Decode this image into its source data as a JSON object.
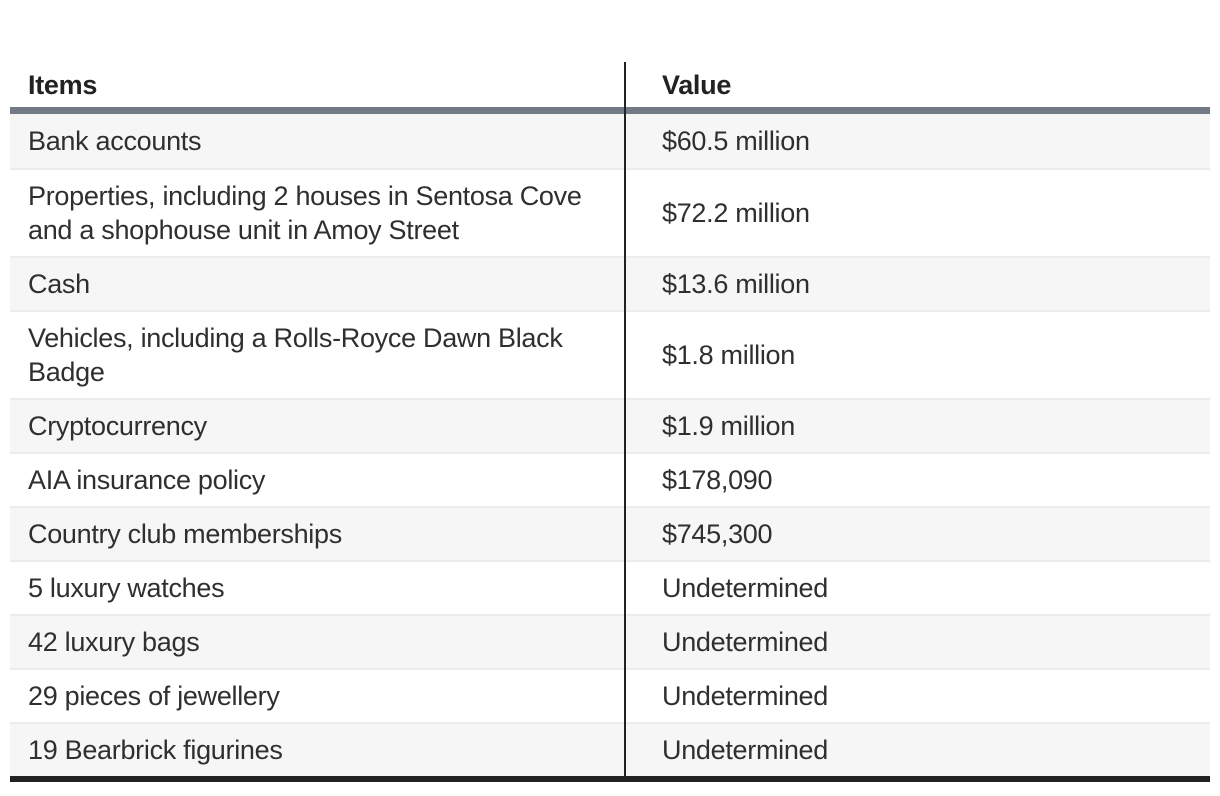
{
  "chart_data": {
    "type": "table",
    "columns": [
      "Items",
      "Value"
    ],
    "rows": [
      [
        "Bank accounts",
        "$60.5 million"
      ],
      [
        "Properties, including 2 houses in Sentosa Cove and a shophouse unit in Amoy Street",
        "$72.2 million"
      ],
      [
        "Cash",
        "$13.6 million"
      ],
      [
        "Vehicles, including a Rolls-Royce Dawn Black Badge",
        "$1.8 million"
      ],
      [
        "Cryptocurrency",
        "$1.9 million"
      ],
      [
        "AIA insurance policy",
        "$178,090"
      ],
      [
        "Country club memberships",
        "$745,300"
      ],
      [
        "5 luxury watches",
        "Undetermined"
      ],
      [
        "42 luxury bags",
        "Undetermined"
      ],
      [
        "29 pieces of jewellery",
        "Undetermined"
      ],
      [
        "19 Bearbrick figurines",
        "Undetermined"
      ]
    ],
    "title": "",
    "legend": [],
    "layout_hints": {
      "alternating_rows": true,
      "first_data_row_shaded": true
    }
  },
  "colors": {
    "header_rule": "#717a85",
    "divider": "#222222",
    "row_alt": "#f6f6f6",
    "separator": "#ececec",
    "bottom_bar": "#222222",
    "text": "#2f2f2f",
    "header_text": "#222222"
  }
}
